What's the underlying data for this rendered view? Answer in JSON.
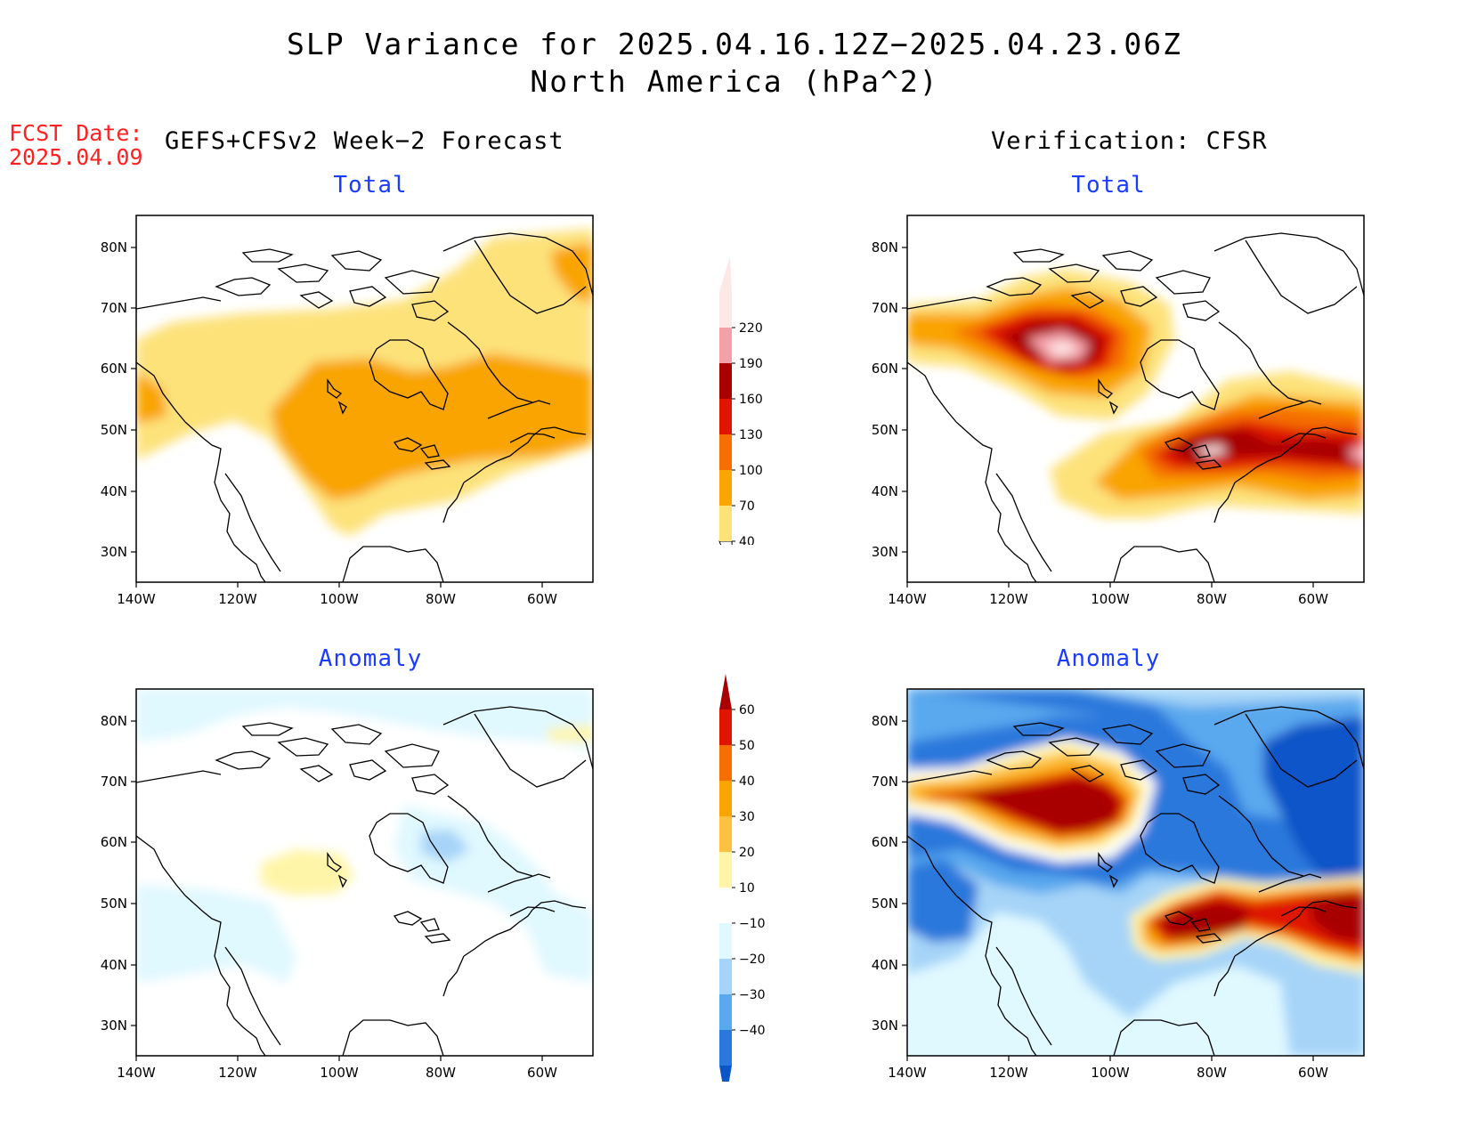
{
  "header": {
    "title_line1": "SLP Variance for 2025.04.16.12Z−2025.04.23.06Z",
    "title_line2": "North America (hPa^2)",
    "fcst_label": "FCST Date:",
    "fcst_date": "2025.04.09",
    "left_heading": "GEFS+CFSv2 Week−2 Forecast",
    "right_heading": "Verification: CFSR"
  },
  "panels": {
    "top_left": "Total",
    "top_right": "Total",
    "bottom_left": "Anomaly",
    "bottom_right": "Anomaly"
  },
  "axes": {
    "lat_labels": [
      "80N",
      "70N",
      "60N",
      "50N",
      "40N",
      "30N"
    ],
    "lon_labels": [
      "140W",
      "120W",
      "100W",
      "80W",
      "60W"
    ]
  },
  "colorbars": {
    "total": {
      "labels": [
        "40",
        "70",
        "100",
        "130",
        "160",
        "190",
        "220"
      ],
      "colors": [
        "#fde27a",
        "#f9a400",
        "#f56e00",
        "#e01500",
        "#a80000",
        "#f4a0a8",
        "#fde8e8"
      ]
    },
    "anomaly": {
      "labels": [
        "60",
        "50",
        "40",
        "30",
        "20",
        "10",
        "−10",
        "−20",
        "−30",
        "−40"
      ],
      "colors": [
        "#a80000",
        "#e01500",
        "#f56e00",
        "#f9a400",
        "#fdc040",
        "#fff5a8",
        "#ffffff",
        "#e0f8ff",
        "#a6d4f8",
        "#5aa8ee",
        "#2a78dc",
        "#0a55c8"
      ]
    }
  },
  "colors": {
    "title_text": "#000000",
    "fcst_text": "#ff2020",
    "panel_title": "#1a3cff"
  }
}
